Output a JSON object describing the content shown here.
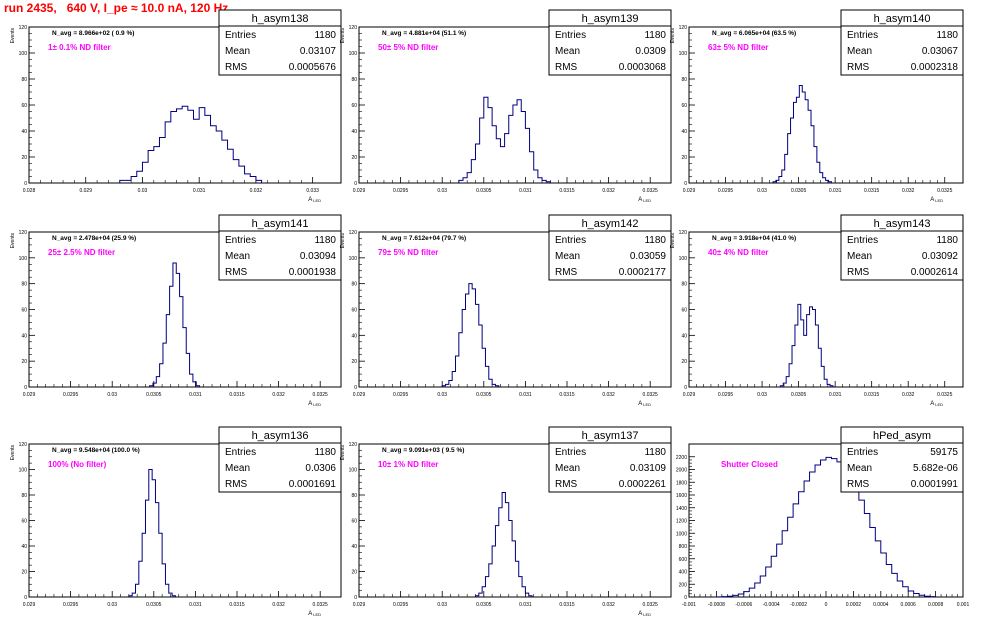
{
  "page": {
    "title": "run 2435,   640 V, I_pe ≈ 10.0 nA, 120 Hz"
  },
  "colors": {
    "title": "#ff0000",
    "histogram": "#000080",
    "annotation": "#ff00ff",
    "frame": "#000000"
  },
  "chart_data": [
    {
      "type": "histogram",
      "name": "h_asym138",
      "stats": {
        "entries": "1180",
        "mean": "0.03107",
        "rms": "0.0005676"
      },
      "header": "N_avg = 8.966e+02 ( 0.9 %)",
      "note": "1± 0.1% ND filter",
      "ylabel": "Events",
      "xlabel": "A",
      "xlabel_sub": "LED",
      "xlim": [
        0.028,
        0.0335
      ],
      "ylim": [
        0,
        120
      ],
      "xticks": [
        0.028,
        0.029,
        0.03,
        0.031,
        0.032,
        0.033
      ],
      "xtick_labels": [
        "0.028",
        "0.029",
        "0.03",
        "0.031",
        "0.032",
        "0.033"
      ],
      "yticks": [
        0,
        20,
        40,
        60,
        80,
        100,
        120
      ],
      "ytick_labels": [
        "0",
        "20",
        "40",
        "60",
        "80",
        "100",
        "120"
      ],
      "bin_start": 0.0296,
      "bin_width": 0.0001,
      "counts": [
        2,
        2,
        5,
        9,
        16,
        25,
        28,
        35,
        47,
        55,
        57,
        59,
        56,
        49,
        58,
        52,
        44,
        40,
        33,
        26,
        18,
        13,
        7,
        5,
        2
      ]
    },
    {
      "type": "histogram",
      "name": "h_asym139",
      "stats": {
        "entries": "1180",
        "mean": "0.0309",
        "rms": "0.0003068"
      },
      "header": "N_avg = 4.881e+04 (51.1 %)",
      "note": "50± 5% ND filter",
      "ylabel": "Events",
      "xlabel": "A",
      "xlabel_sub": "LED",
      "xlim": [
        0.029,
        0.03275
      ],
      "ylim": [
        0,
        120
      ],
      "xticks": [
        0.029,
        0.0295,
        0.03,
        0.0305,
        0.031,
        0.0315,
        0.032,
        0.0325
      ],
      "xtick_labels": [
        "0.029",
        "0.0295",
        "0.03",
        "0.0305",
        "0.031",
        "0.0315",
        "0.032",
        "0.0325"
      ],
      "yticks": [
        0,
        20,
        40,
        60,
        80,
        100,
        120
      ],
      "ytick_labels": [
        "0",
        "20",
        "40",
        "60",
        "80",
        "100",
        "120"
      ],
      "bin_start": 0.0302,
      "bin_width": 5e-05,
      "counts": [
        2,
        4,
        8,
        18,
        30,
        50,
        66,
        58,
        44,
        34,
        28,
        38,
        52,
        60,
        64,
        55,
        42,
        24,
        10,
        4,
        2,
        1
      ]
    },
    {
      "type": "histogram",
      "name": "h_asym140",
      "stats": {
        "entries": "1180",
        "mean": "0.03067",
        "rms": "0.0002318"
      },
      "header": "N_avg = 6.065e+04 (63.5 %)",
      "note": "63± 5% ND filter",
      "ylabel": "Events",
      "xlabel": "A",
      "xlabel_sub": "LED",
      "xlim": [
        0.029,
        0.03275
      ],
      "ylim": [
        0,
        120
      ],
      "xticks": [
        0.029,
        0.0295,
        0.03,
        0.0305,
        0.031,
        0.0315,
        0.032,
        0.0325
      ],
      "xtick_labels": [
        "0.029",
        "0.0295",
        "0.03",
        "0.0305",
        "0.031",
        "0.0315",
        "0.032",
        "0.0325"
      ],
      "yticks": [
        0,
        20,
        40,
        60,
        80,
        100,
        120
      ],
      "ytick_labels": [
        "0",
        "20",
        "40",
        "60",
        "80",
        "100",
        "120"
      ],
      "bin_start": 0.03015,
      "bin_width": 4e-05,
      "counts": [
        1,
        2,
        5,
        10,
        22,
        38,
        50,
        62,
        66,
        75,
        70,
        64,
        56,
        44,
        28,
        16,
        8,
        4,
        2,
        1
      ]
    },
    {
      "type": "histogram",
      "name": "h_asym141",
      "stats": {
        "entries": "1180",
        "mean": "0.03094",
        "rms": "0.0001938"
      },
      "header": "N_avg = 2.478e+04 (25.9 %)",
      "note": "25± 2.5% ND filter",
      "ylabel": "Events",
      "xlabel": "A",
      "xlabel_sub": "LED",
      "xlim": [
        0.029,
        0.03275
      ],
      "ylim": [
        0,
        120
      ],
      "xticks": [
        0.029,
        0.0295,
        0.03,
        0.0305,
        0.031,
        0.0315,
        0.032,
        0.0325
      ],
      "xtick_labels": [
        "0.029",
        "0.0295",
        "0.03",
        "0.0305",
        "0.031",
        "0.0315",
        "0.032",
        "0.0325"
      ],
      "yticks": [
        0,
        20,
        40,
        60,
        80,
        100,
        120
      ],
      "ytick_labels": [
        "0",
        "20",
        "40",
        "60",
        "80",
        "100",
        "120"
      ],
      "bin_start": 0.03045,
      "bin_width": 4e-05,
      "counts": [
        1,
        3,
        8,
        18,
        34,
        56,
        78,
        96,
        88,
        70,
        46,
        26,
        10,
        4,
        1
      ]
    },
    {
      "type": "histogram",
      "name": "h_asym142",
      "stats": {
        "entries": "1180",
        "mean": "0.03059",
        "rms": "0.0002177"
      },
      "header": "N_avg = 7.612e+04 (79.7 %)",
      "note": "79± 5% ND filter",
      "ylabel": "Events",
      "xlabel": "A",
      "xlabel_sub": "LED",
      "xlim": [
        0.029,
        0.03275
      ],
      "ylim": [
        0,
        120
      ],
      "xticks": [
        0.029,
        0.0295,
        0.03,
        0.0305,
        0.031,
        0.0315,
        0.032,
        0.0325
      ],
      "xtick_labels": [
        "0.029",
        "0.0295",
        "0.03",
        "0.0305",
        "0.031",
        "0.0315",
        "0.032",
        "0.0325"
      ],
      "yticks": [
        0,
        20,
        40,
        60,
        80,
        100,
        120
      ],
      "ytick_labels": [
        "0",
        "20",
        "40",
        "60",
        "80",
        "100",
        "120"
      ],
      "bin_start": 0.03,
      "bin_width": 4e-05,
      "counts": [
        1,
        2,
        5,
        12,
        24,
        42,
        60,
        72,
        80,
        76,
        64,
        48,
        30,
        16,
        6,
        2,
        1
      ]
    },
    {
      "type": "histogram",
      "name": "h_asym143",
      "stats": {
        "entries": "1180",
        "mean": "0.03092",
        "rms": "0.0002614"
      },
      "header": "N_avg = 3.918e+04 (41.0 %)",
      "note": "40± 4% ND filter",
      "ylabel": "Events",
      "xlabel": "A",
      "xlabel_sub": "LED",
      "xlim": [
        0.029,
        0.03275
      ],
      "ylim": [
        0,
        120
      ],
      "xticks": [
        0.029,
        0.0295,
        0.03,
        0.0305,
        0.031,
        0.0315,
        0.032,
        0.0325
      ],
      "xtick_labels": [
        "0.029",
        "0.0295",
        "0.03",
        "0.0305",
        "0.031",
        "0.0315",
        "0.032",
        "0.0325"
      ],
      "yticks": [
        0,
        20,
        40,
        60,
        80,
        100,
        120
      ],
      "ytick_labels": [
        "0",
        "20",
        "40",
        "60",
        "80",
        "100",
        "120"
      ],
      "bin_start": 0.03025,
      "bin_width": 4e-05,
      "counts": [
        1,
        3,
        8,
        18,
        32,
        48,
        64,
        52,
        40,
        56,
        62,
        60,
        48,
        30,
        16,
        6,
        2,
        1
      ]
    },
    {
      "type": "histogram",
      "name": "h_asym136",
      "stats": {
        "entries": "1180",
        "mean": "0.0306",
        "rms": "0.0001691"
      },
      "header": "N_avg = 9.548e+04 (100.0 %)",
      "note": "100% (No filter)",
      "ylabel": "Events",
      "xlabel": "A",
      "xlabel_sub": "LED",
      "xlim": [
        0.029,
        0.03275
      ],
      "ylim": [
        0,
        120
      ],
      "xticks": [
        0.029,
        0.0295,
        0.03,
        0.0305,
        0.031,
        0.0315,
        0.032,
        0.0325
      ],
      "xtick_labels": [
        "0.029",
        "0.0295",
        "0.03",
        "0.0305",
        "0.031",
        "0.0315",
        "0.032",
        "0.0325"
      ],
      "yticks": [
        0,
        20,
        40,
        60,
        80,
        100,
        120
      ],
      "ytick_labels": [
        "0",
        "20",
        "40",
        "60",
        "80",
        "100",
        "120"
      ],
      "bin_start": 0.0302,
      "bin_width": 4e-05,
      "counts": [
        1,
        3,
        10,
        28,
        50,
        76,
        100,
        92,
        74,
        50,
        26,
        10,
        3,
        1
      ]
    },
    {
      "type": "histogram",
      "name": "h_asym137",
      "stats": {
        "entries": "1180",
        "mean": "0.03109",
        "rms": "0.0002261"
      },
      "header": "N_avg = 9.091e+03 ( 9.5 %)",
      "note": "10± 1% ND filter",
      "ylabel": "Events",
      "xlabel": "A",
      "xlabel_sub": "LED",
      "xlim": [
        0.029,
        0.03275
      ],
      "ylim": [
        0,
        120
      ],
      "xticks": [
        0.029,
        0.0295,
        0.03,
        0.0305,
        0.031,
        0.0315,
        0.032,
        0.0325
      ],
      "xtick_labels": [
        "0.029",
        "0.0295",
        "0.03",
        "0.0305",
        "0.031",
        "0.0315",
        "0.032",
        "0.0325"
      ],
      "yticks": [
        0,
        20,
        40,
        60,
        80,
        100,
        120
      ],
      "ytick_labels": [
        "0",
        "20",
        "40",
        "60",
        "80",
        "100",
        "120"
      ],
      "bin_start": 0.0304,
      "bin_width": 4e-05,
      "counts": [
        1,
        3,
        8,
        16,
        26,
        40,
        56,
        70,
        82,
        74,
        60,
        44,
        28,
        16,
        8,
        3,
        1
      ]
    },
    {
      "type": "histogram",
      "name": "hPed_asym",
      "stats": {
        "entries": "59175",
        "mean": "5.682e-06",
        "rms": "0.0001991"
      },
      "header": "",
      "note": "Shutter Closed",
      "ylabel": "",
      "xlabel": "",
      "xlabel_sub": "",
      "xlim": [
        -0.001,
        0.001
      ],
      "ylim": [
        0,
        2400
      ],
      "xticks": [
        -0.001,
        -0.0008,
        -0.0006,
        -0.0004,
        -0.0002,
        0,
        0.0002,
        0.0004,
        0.0006,
        0.0008,
        0.001
      ],
      "xtick_labels": [
        "-0.001",
        "-0.0008",
        "-0.0006",
        "-0.0004",
        "-0.0002",
        "0",
        "0.0002",
        "0.0004",
        "0.0006",
        "0.0008",
        "0.001"
      ],
      "yticks": [
        0,
        200,
        400,
        600,
        800,
        1000,
        1200,
        1400,
        1600,
        1800,
        2000,
        2200
      ],
      "ytick_labels": [
        "0",
        "200",
        "400",
        "600",
        "800",
        "1000",
        "1200",
        "1400",
        "1600",
        "1800",
        "2000",
        "2200"
      ],
      "bin_start": -0.0008,
      "bin_width": 4e-05,
      "counts": [
        2,
        5,
        12,
        25,
        48,
        85,
        140,
        220,
        330,
        470,
        640,
        830,
        1040,
        1250,
        1460,
        1650,
        1820,
        1960,
        2070,
        2150,
        2190,
        2170,
        2120,
        2030,
        1890,
        1720,
        1520,
        1310,
        1090,
        880,
        690,
        510,
        370,
        250,
        160,
        95,
        55,
        28,
        12,
        5
      ]
    }
  ]
}
